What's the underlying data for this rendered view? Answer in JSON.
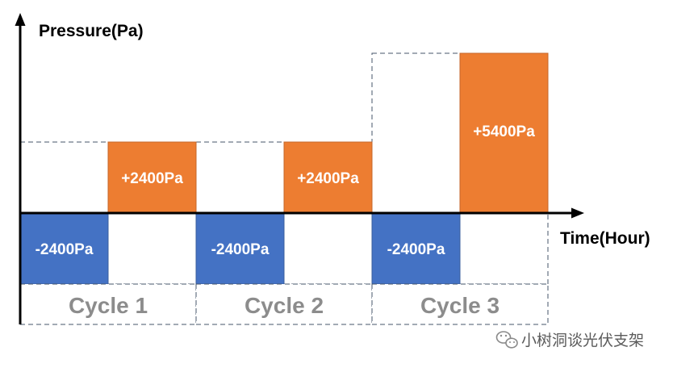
{
  "y_axis_label": "Pressure(Pa)",
  "x_axis_label": "Time(Hour)",
  "cycles": [
    {
      "label": "Cycle 1",
      "negative": {
        "value": -2400,
        "label": "-2400Pa"
      },
      "positive": {
        "value": 2400,
        "label": "+2400Pa"
      }
    },
    {
      "label": "Cycle 2",
      "negative": {
        "value": -2400,
        "label": "-2400Pa"
      },
      "positive": {
        "value": 2400,
        "label": "+2400Pa"
      }
    },
    {
      "label": "Cycle 3",
      "negative": {
        "value": -2400,
        "label": "-2400Pa"
      },
      "positive": {
        "value": 5400,
        "label": "+5400Pa"
      }
    }
  ],
  "colors": {
    "negative": "#4472c4",
    "positive": "#ed7d31",
    "dashed_outline": "#44546a",
    "axis": "#000000",
    "cycle_text": "#8c8c8c"
  },
  "watermark": {
    "text": "小树洞谈光伏支架",
    "icon": "wechat-icon"
  }
}
